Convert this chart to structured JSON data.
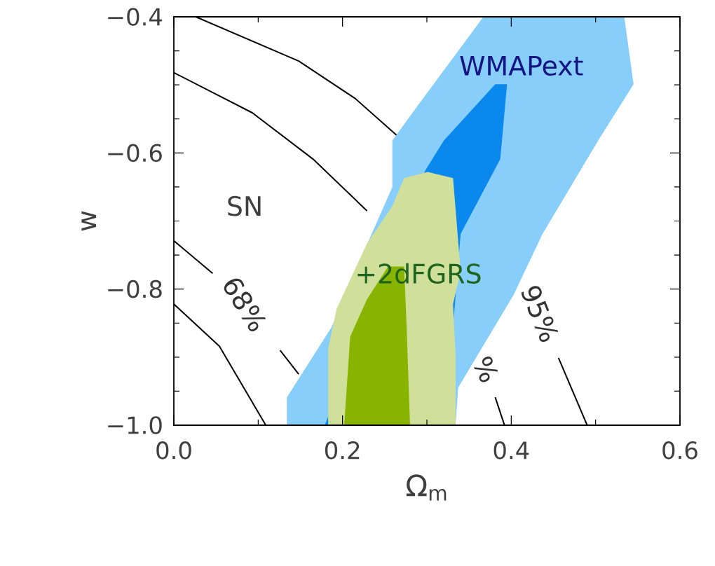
{
  "chart_data": {
    "type": "line",
    "xlabel": "Ω$_{m}$",
    "ylabel": "w",
    "xlim": [
      0.0,
      0.6
    ],
    "ylim": [
      -1.0,
      -0.4
    ],
    "xticks": [
      {
        "value": 0.0,
        "label": "0.0"
      },
      {
        "value": 0.2,
        "label": "0.2"
      },
      {
        "value": 0.4,
        "label": "0.4"
      },
      {
        "value": 0.6,
        "label": "0.6"
      }
    ],
    "yticks": [
      {
        "value": -1.0,
        "label": "−1.0"
      },
      {
        "value": -0.8,
        "label": "−0.8"
      },
      {
        "value": -0.6,
        "label": "−0.6"
      },
      {
        "value": -0.4,
        "label": "−0.4"
      }
    ],
    "series": [
      {
        "color": "#000000",
        "x": [
          0.026,
          0.148,
          0.215,
          0.265
        ],
        "values": [
          -0.4,
          -0.465,
          -0.52,
          -0.575
        ]
      },
      {
        "color": "#000000",
        "x": [
          0.0,
          0.093,
          0.165,
          0.229
        ],
        "values": [
          -0.482,
          -0.541,
          -0.609,
          -0.685
        ]
      },
      {
        "color": "#000000",
        "x": [
          0.0,
          0.046
        ],
        "values": [
          -0.729,
          -0.777
        ]
      },
      {
        "color": "#000000",
        "x": [
          0.126,
          0.148
        ],
        "values": [
          -0.89,
          -0.925
        ]
      },
      {
        "color": "#000000",
        "x": [
          0.381,
          0.392
        ],
        "values": [
          -0.959,
          -1.0
        ]
      },
      {
        "color": "#000000",
        "x": [
          0.0,
          0.054,
          0.109
        ],
        "values": [
          -0.822,
          -0.884,
          -1.0
        ]
      },
      {
        "color": "#000000",
        "x": [
          0.456,
          0.49
        ],
        "values": [
          -0.901,
          -1.0
        ]
      },
      {
        "type": "area",
        "color": "#87cefa",
        "x": [
          0.134,
          0.134,
          0.187,
          0.215,
          0.259,
          0.259,
          0.287,
          0.367,
          0.534,
          0.545,
          0.503,
          0.437,
          0.403,
          0.337,
          0.334
        ],
        "values": [
          -1.0,
          -0.959,
          -0.856,
          -0.774,
          -0.65,
          -0.582,
          -0.534,
          -0.4,
          -0.4,
          -0.499,
          -0.582,
          -0.719,
          -0.808,
          -0.945,
          -1.0
        ]
      },
      {
        "type": "area",
        "color": "#0a88ee",
        "x": [
          0.179,
          0.204,
          0.248,
          0.298,
          0.32,
          0.381,
          0.395,
          0.387,
          0.34,
          0.331,
          0.315
        ],
        "values": [
          -1.0,
          null,
          null,
          -0.626,
          -0.582,
          -0.499,
          -0.499,
          -0.609,
          -0.719,
          -0.856,
          -1.0
        ]
      },
      {
        "type": "area",
        "color": "#d0e09a",
        "x": [
          0.183,
          0.183,
          0.193,
          0.229,
          0.259,
          0.273,
          0.301,
          0.331,
          0.34,
          0.331,
          0.334,
          0.334
        ],
        "values": [
          -1.0,
          -0.887,
          -0.829,
          -0.733,
          -0.678,
          -0.637,
          -0.628,
          -0.637,
          -0.774,
          -0.822,
          -0.897,
          -1.0
        ]
      },
      {
        "type": "area",
        "color": "#88b400",
        "x": [
          0.202,
          0.209,
          0.229,
          0.254,
          0.273,
          0.276,
          0.28
        ],
        "values": [
          -1.0,
          -0.87,
          -0.815,
          -0.767,
          -0.767,
          -0.856,
          -1.0
        ]
      }
    ],
    "annotations": [
      "SN",
      "WMAPext",
      "+2dFGRS",
      "68%",
      "95%",
      "%"
    ],
    "grid": false
  }
}
